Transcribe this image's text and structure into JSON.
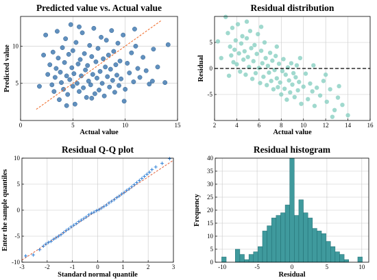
{
  "colors": {
    "scatter_fill": "#2c6ba8",
    "scatter_edge": "#1b4f82",
    "trend_line": "#f07030",
    "residual_fill": "#88cfc2",
    "zero_line": "#000000",
    "qq_marker": "#1f77d4",
    "qq_line": "#e0603a",
    "hist_bar": "#3f9a9d",
    "hist_edge": "#1f6b70",
    "grid": "#c8c8c8"
  },
  "chart_data": [
    {
      "type": "scatter",
      "title": "Predicted value vs. Actual value",
      "xlabel": "Actual value",
      "ylabel": "Predicted value",
      "xlim": [
        0,
        15
      ],
      "ylim": [
        0,
        14
      ],
      "xticks": [
        "0",
        "5",
        "10",
        "15"
      ],
      "yticks": [
        "5",
        "10"
      ],
      "grid": true,
      "series": [
        {
          "points": [
            [
              2.4,
              11.5
            ],
            [
              2.6,
              6.2
            ],
            [
              2.8,
              7.5
            ],
            [
              3.0,
              4.8
            ],
            [
              3.1,
              9.2
            ],
            [
              3.2,
              3.9
            ],
            [
              3.3,
              5.8
            ],
            [
              3.4,
              7.0
            ],
            [
              3.5,
              12.0
            ],
            [
              3.6,
              8.4
            ],
            [
              3.7,
              2.8
            ],
            [
              3.8,
              6.5
            ],
            [
              3.9,
              5.1
            ],
            [
              4.0,
              9.8
            ],
            [
              4.1,
              4.2
            ],
            [
              4.2,
              7.8
            ],
            [
              4.3,
              11.0
            ],
            [
              4.4,
              6.0
            ],
            [
              4.5,
              3.5
            ],
            [
              4.6,
              8.9
            ],
            [
              4.7,
              5.5
            ],
            [
              4.8,
              12.9
            ],
            [
              4.9,
              7.1
            ],
            [
              5.0,
              4.6
            ],
            [
              5.0,
              9.4
            ],
            [
              5.1,
              6.3
            ],
            [
              5.2,
              2.2
            ],
            [
              5.3,
              10.5
            ],
            [
              5.4,
              5.0
            ],
            [
              5.5,
              7.6
            ],
            [
              5.6,
              3.9
            ],
            [
              5.7,
              8.2
            ],
            [
              5.8,
              6.0
            ],
            [
              5.9,
              11.8
            ],
            [
              6.0,
              4.4
            ],
            [
              6.1,
              9.0
            ],
            [
              6.2,
              6.8
            ],
            [
              6.3,
              3.1
            ],
            [
              6.4,
              7.4
            ],
            [
              6.5,
              5.3
            ],
            [
              6.6,
              10.1
            ],
            [
              6.7,
              4.8
            ],
            [
              6.8,
              8.6
            ],
            [
              6.9,
              6.2
            ],
            [
              7.0,
              12.4
            ],
            [
              7.1,
              3.6
            ],
            [
              7.2,
              7.9
            ],
            [
              7.3,
              5.7
            ],
            [
              7.4,
              9.7
            ],
            [
              7.5,
              4.1
            ],
            [
              7.6,
              6.6
            ],
            [
              7.7,
              11.2
            ],
            [
              7.8,
              5.0
            ],
            [
              7.9,
              8.3
            ],
            [
              8.0,
              3.3
            ],
            [
              8.1,
              7.2
            ],
            [
              8.2,
              10.8
            ],
            [
              8.3,
              5.9
            ],
            [
              8.4,
              8.8
            ],
            [
              8.5,
              4.5
            ],
            [
              8.6,
              6.9
            ],
            [
              8.7,
              12.1
            ],
            [
              8.8,
              5.4
            ],
            [
              8.9,
              9.3
            ],
            [
              9.0,
              3.8
            ],
            [
              9.1,
              7.5
            ],
            [
              9.2,
              6.1
            ],
            [
              9.3,
              10.4
            ],
            [
              9.4,
              4.7
            ],
            [
              9.5,
              8.0
            ],
            [
              9.6,
              5.6
            ],
            [
              9.8,
              11.5
            ],
            [
              10.0,
              4.2
            ],
            [
              10.2,
              7.7
            ],
            [
              10.4,
              6.4
            ],
            [
              10.6,
              9.1
            ],
            [
              10.8,
              5.2
            ],
            [
              11.0,
              10.0
            ],
            [
              11.2,
              7.0
            ],
            [
              11.4,
              5.8
            ],
            [
              11.7,
              8.5
            ],
            [
              12.0,
              6.7
            ],
            [
              12.3,
              4.9
            ],
            [
              12.7,
              9.6
            ],
            [
              13.1,
              7.2
            ],
            [
              13.8,
              5.1
            ],
            [
              14.1,
              10.2
            ],
            [
              1.8,
              4.6
            ],
            [
              2.2,
              8.8
            ],
            [
              4.4,
              2.0
            ],
            [
              5.6,
              12.6
            ],
            [
              6.8,
              3.0
            ],
            [
              9.9,
              2.6
            ],
            [
              10.9,
              12.3
            ],
            [
              12.6,
              5.3
            ]
          ]
        }
      ],
      "trend": [
        [
          1.5,
          1.5
        ],
        [
          13.5,
          13.5
        ]
      ]
    },
    {
      "type": "scatter",
      "title": "Residual distribution",
      "xlabel": "Actual value",
      "ylabel": "Residual",
      "xlim": [
        2,
        16
      ],
      "ylim": [
        -10,
        10
      ],
      "xticks": [
        "2",
        "4",
        "6",
        "8",
        "10",
        "12",
        "14",
        "16"
      ],
      "yticks": [
        "-5",
        "0",
        "5"
      ],
      "grid": true,
      "zero_line": 0,
      "series": [
        {
          "points": [
            [
              3.0,
              9.9
            ],
            [
              3.2,
              6.8
            ],
            [
              3.4,
              4.2
            ],
            [
              3.5,
              2.5
            ],
            [
              3.6,
              7.8
            ],
            [
              3.7,
              1.2
            ],
            [
              3.8,
              3.6
            ],
            [
              3.9,
              5.4
            ],
            [
              4.0,
              0.8
            ],
            [
              4.1,
              8.5
            ],
            [
              4.2,
              2.9
            ],
            [
              4.3,
              -0.6
            ],
            [
              4.4,
              4.8
            ],
            [
              4.5,
              6.2
            ],
            [
              4.6,
              1.7
            ],
            [
              4.7,
              3.3
            ],
            [
              4.8,
              -1.2
            ],
            [
              4.9,
              5.8
            ],
            [
              5.0,
              2.2
            ],
            [
              5.1,
              0.3
            ],
            [
              5.2,
              7.2
            ],
            [
              5.3,
              3.9
            ],
            [
              5.4,
              -2.0
            ],
            [
              5.5,
              1.4
            ],
            [
              5.6,
              4.5
            ],
            [
              5.7,
              -0.9
            ],
            [
              5.8,
              2.8
            ],
            [
              5.9,
              6.6
            ],
            [
              6.0,
              0.1
            ],
            [
              6.1,
              -2.8
            ],
            [
              6.2,
              3.4
            ],
            [
              6.3,
              1.0
            ],
            [
              6.4,
              -1.6
            ],
            [
              6.5,
              5.0
            ],
            [
              6.6,
              2.0
            ],
            [
              6.7,
              -3.2
            ],
            [
              6.8,
              0.5
            ],
            [
              6.9,
              -0.8
            ],
            [
              7.0,
              3.0
            ],
            [
              7.1,
              -2.4
            ],
            [
              7.2,
              1.5
            ],
            [
              7.3,
              -4.0
            ],
            [
              7.4,
              -0.3
            ],
            [
              7.5,
              2.4
            ],
            [
              7.6,
              -1.9
            ],
            [
              7.7,
              -3.6
            ],
            [
              7.8,
              0.9
            ],
            [
              7.9,
              -2.7
            ],
            [
              8.0,
              -5.0
            ],
            [
              8.1,
              -0.5
            ],
            [
              8.2,
              1.8
            ],
            [
              8.3,
              -3.9
            ],
            [
              8.4,
              -1.2
            ],
            [
              8.5,
              -6.0
            ],
            [
              8.6,
              0.2
            ],
            [
              8.7,
              -2.3
            ],
            [
              8.8,
              -4.6
            ],
            [
              8.9,
              1.0
            ],
            [
              9.0,
              -3.1
            ],
            [
              9.1,
              -0.9
            ],
            [
              9.2,
              -5.5
            ],
            [
              9.3,
              -1.7
            ],
            [
              9.4,
              0.6
            ],
            [
              9.5,
              -4.2
            ],
            [
              9.6,
              -2.6
            ],
            [
              9.8,
              -6.8
            ],
            [
              10.0,
              -3.5
            ],
            [
              10.2,
              -1.0
            ],
            [
              10.4,
              -5.9
            ],
            [
              10.6,
              -2.9
            ],
            [
              10.8,
              -4.4
            ],
            [
              11.0,
              -7.2
            ],
            [
              11.2,
              -3.7
            ],
            [
              11.5,
              -5.2
            ],
            [
              11.8,
              -2.4
            ],
            [
              12.1,
              -6.4
            ],
            [
              12.4,
              -4.0
            ],
            [
              12.8,
              -8.0
            ],
            [
              13.1,
              -5.6
            ],
            [
              13.5,
              -7.0
            ],
            [
              14.0,
              -9.0
            ],
            [
              12.6,
              -9.3
            ],
            [
              3.3,
              -1.4
            ],
            [
              2.3,
              5.2
            ],
            [
              2.6,
              2.0
            ],
            [
              4.9,
              9.0
            ],
            [
              6.2,
              8.0
            ],
            [
              7.6,
              4.2
            ],
            [
              9.7,
              2.0
            ],
            [
              10.9,
              0.6
            ],
            [
              12.0,
              -1.2
            ],
            [
              13.2,
              -3.4
            ]
          ]
        }
      ]
    },
    {
      "type": "scatter",
      "title": "Residual Q-Q plot",
      "xlabel": "Standard normal quantile",
      "ylabel": "Enter the sample quantiles",
      "xlim": [
        -3,
        3
      ],
      "ylim": [
        -10,
        10
      ],
      "xticks": [
        "-3",
        "-2",
        "-1",
        "0",
        "1",
        "2",
        "3"
      ],
      "yticks": [
        "-10",
        "-5",
        "0",
        "5",
        "10"
      ],
      "grid": true,
      "series": [
        {
          "points": [
            [
              -2.85,
              -8.8
            ],
            [
              -2.55,
              -8.6
            ],
            [
              -2.3,
              -7.6
            ],
            [
              -2.15,
              -6.9
            ],
            [
              -2.05,
              -6.5
            ],
            [
              -1.95,
              -6.2
            ],
            [
              -1.85,
              -6.0
            ],
            [
              -1.75,
              -5.6
            ],
            [
              -1.65,
              -5.3
            ],
            [
              -1.55,
              -5.0
            ],
            [
              -1.45,
              -4.7
            ],
            [
              -1.35,
              -4.3
            ],
            [
              -1.25,
              -3.9
            ],
            [
              -1.15,
              -3.6
            ],
            [
              -1.05,
              -3.2
            ],
            [
              -0.95,
              -2.9
            ],
            [
              -0.85,
              -2.6
            ],
            [
              -0.75,
              -2.2
            ],
            [
              -0.65,
              -1.9
            ],
            [
              -0.55,
              -1.6
            ],
            [
              -0.45,
              -1.3
            ],
            [
              -0.35,
              -0.9
            ],
            [
              -0.25,
              -0.6
            ],
            [
              -0.15,
              -0.4
            ],
            [
              -0.05,
              -0.1
            ],
            [
              0.05,
              0.1
            ],
            [
              0.15,
              0.4
            ],
            [
              0.25,
              0.7
            ],
            [
              0.35,
              1.0
            ],
            [
              0.45,
              1.4
            ],
            [
              0.55,
              1.7
            ],
            [
              0.65,
              2.0
            ],
            [
              0.75,
              2.4
            ],
            [
              0.85,
              2.7
            ],
            [
              0.95,
              3.1
            ],
            [
              1.05,
              3.4
            ],
            [
              1.15,
              3.8
            ],
            [
              1.25,
              4.1
            ],
            [
              1.35,
              4.5
            ],
            [
              1.45,
              4.9
            ],
            [
              1.55,
              5.3
            ],
            [
              1.65,
              5.7
            ],
            [
              1.75,
              6.1
            ],
            [
              1.85,
              6.5
            ],
            [
              1.95,
              6.9
            ],
            [
              2.05,
              7.3
            ],
            [
              2.15,
              7.8
            ],
            [
              2.3,
              8.3
            ],
            [
              2.55,
              9.0
            ],
            [
              2.85,
              9.9
            ]
          ]
        }
      ],
      "reference_line": [
        [
          -3,
          -9.6
        ],
        [
          3,
          9.6
        ]
      ]
    },
    {
      "type": "bar",
      "title": "Residual histogram",
      "xlabel": "Residual",
      "ylabel": "Frequency",
      "xlim": [
        -11,
        11
      ],
      "ylim": [
        0,
        40
      ],
      "xticks": [
        "-10",
        "-5",
        "0",
        "5",
        "10"
      ],
      "yticks": [
        "0",
        "5",
        "10",
        "15",
        "20",
        "25",
        "30",
        "35",
        "40"
      ],
      "grid": true,
      "bin_width": 0.65,
      "bin_centers": [
        -9.75,
        -7.8,
        -7.15,
        -6.5,
        -5.85,
        -5.2,
        -4.55,
        -3.9,
        -3.25,
        -2.6,
        -1.95,
        -1.3,
        -0.65,
        0.0,
        0.65,
        1.3,
        1.95,
        2.6,
        3.25,
        3.9,
        4.55,
        5.2,
        5.85,
        6.5,
        7.15,
        7.8,
        9.75
      ],
      "values": [
        2,
        5,
        3,
        1,
        3,
        4,
        6,
        12,
        14,
        17,
        18,
        19,
        22,
        40,
        18,
        24,
        19,
        17,
        13,
        12,
        11,
        8,
        6,
        4,
        3,
        1,
        2
      ]
    }
  ]
}
